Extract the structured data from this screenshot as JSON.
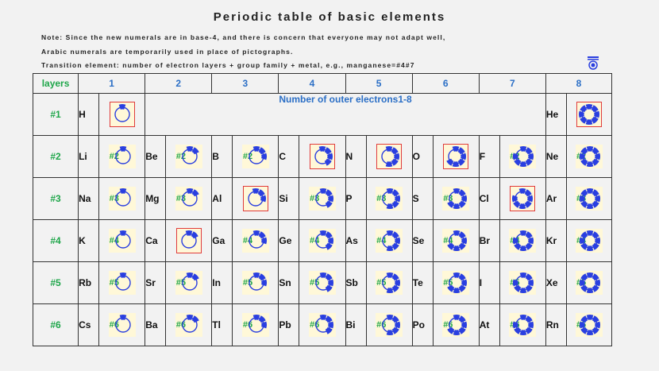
{
  "title": "Periodic table of basic elements",
  "notes": [
    "Note: Since the new numerals are in base-4, and there is concern that everyone may not adapt well,",
    "Arabic numerals are temporarily used in place of pictographs.",
    "Transition element: number of electron layers + group family + metal, e.g., manganese=#4#7"
  ],
  "header": {
    "layers_label": "layers",
    "groups": [
      "1",
      "2",
      "3",
      "4",
      "5",
      "6",
      "7",
      "8"
    ]
  },
  "span_label": "Number of outer electrons1-8",
  "rows": [
    {
      "layer": "#1",
      "cells": [
        {
          "sym": "H",
          "n": 1,
          "tag": "",
          "boxed": true
        },
        {
          "sym": "He",
          "n": 8,
          "tag": "",
          "boxed": true
        }
      ]
    },
    {
      "layer": "#2",
      "cells": [
        {
          "sym": "Li",
          "n": 1,
          "tag": "#2"
        },
        {
          "sym": "Be",
          "n": 2,
          "tag": "#2"
        },
        {
          "sym": "B",
          "n": 3,
          "tag": "#2"
        },
        {
          "sym": "C",
          "n": 4,
          "tag": "",
          "boxed": true
        },
        {
          "sym": "N",
          "n": 5,
          "tag": "",
          "boxed": true
        },
        {
          "sym": "O",
          "n": 6,
          "tag": "",
          "boxed": true
        },
        {
          "sym": "F",
          "n": 7,
          "tag": "#2"
        },
        {
          "sym": "Ne",
          "n": 8,
          "tag": "#2"
        }
      ]
    },
    {
      "layer": "#3",
      "cells": [
        {
          "sym": "Na",
          "n": 1,
          "tag": "#3"
        },
        {
          "sym": "Mg",
          "n": 2,
          "tag": "#3"
        },
        {
          "sym": "Al",
          "n": 3,
          "tag": "",
          "boxed": true
        },
        {
          "sym": "Si",
          "n": 4,
          "tag": "#3"
        },
        {
          "sym": "P",
          "n": 5,
          "tag": "#3"
        },
        {
          "sym": "S",
          "n": 6,
          "tag": "#3"
        },
        {
          "sym": "Cl",
          "n": 7,
          "tag": "",
          "boxed": true
        },
        {
          "sym": "Ar",
          "n": 8,
          "tag": "#3"
        }
      ]
    },
    {
      "layer": "#4",
      "cells": [
        {
          "sym": "K",
          "n": 1,
          "tag": "#4"
        },
        {
          "sym": "Ca",
          "n": 2,
          "tag": "",
          "boxed": true
        },
        {
          "sym": "Ga",
          "n": 3,
          "tag": "#4"
        },
        {
          "sym": "Ge",
          "n": 4,
          "tag": "#4"
        },
        {
          "sym": "As",
          "n": 5,
          "tag": "#4"
        },
        {
          "sym": "Se",
          "n": 6,
          "tag": "#4"
        },
        {
          "sym": "Br",
          "n": 7,
          "tag": "#4"
        },
        {
          "sym": "Kr",
          "n": 8,
          "tag": "#4"
        }
      ]
    },
    {
      "layer": "#5",
      "cells": [
        {
          "sym": "Rb",
          "n": 1,
          "tag": "#5"
        },
        {
          "sym": "Sr",
          "n": 2,
          "tag": "#5"
        },
        {
          "sym": "In",
          "n": 3,
          "tag": "#5"
        },
        {
          "sym": "Sn",
          "n": 4,
          "tag": "#5"
        },
        {
          "sym": "Sb",
          "n": 5,
          "tag": "#5"
        },
        {
          "sym": "Te",
          "n": 6,
          "tag": "#5"
        },
        {
          "sym": "I",
          "n": 7,
          "tag": "#5"
        },
        {
          "sym": "Xe",
          "n": 8,
          "tag": "#5"
        }
      ]
    },
    {
      "layer": "#6",
      "cells": [
        {
          "sym": "Cs",
          "n": 1,
          "tag": "#6"
        },
        {
          "sym": "Ba",
          "n": 2,
          "tag": "#6"
        },
        {
          "sym": "Tl",
          "n": 3,
          "tag": "#6"
        },
        {
          "sym": "Pb",
          "n": 4,
          "tag": "#6"
        },
        {
          "sym": "Bi",
          "n": 5,
          "tag": "#6"
        },
        {
          "sym": "Po",
          "n": 6,
          "tag": "#6"
        },
        {
          "sym": "At",
          "n": 7,
          "tag": "#6"
        },
        {
          "sym": "Rn",
          "n": 8,
          "tag": "#6"
        }
      ]
    }
  ],
  "colors": {
    "ring": "#2a3fe0",
    "layer": "#1fa64a",
    "header": "#2b6fc6",
    "box": "#e03b3b"
  },
  "icons": {
    "stamp": "stamp-icon",
    "electron": "electron-ring-icon"
  }
}
